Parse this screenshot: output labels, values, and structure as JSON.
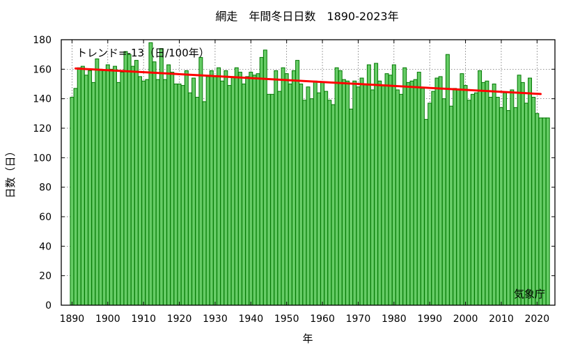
{
  "chart_data": {
    "type": "bar",
    "title": "網走　年間冬日日数　1890-2023年",
    "xlabel": "年",
    "ylabel": "日数（日）",
    "xlim": [
      1887,
      2025
    ],
    "ylim": [
      0,
      180
    ],
    "x_ticks": [
      1890,
      1900,
      1910,
      1920,
      1930,
      1940,
      1950,
      1960,
      1970,
      1980,
      1990,
      2000,
      2010,
      2020
    ],
    "y_ticks": [
      0,
      20,
      40,
      60,
      80,
      100,
      120,
      140,
      160,
      180
    ],
    "grid": true,
    "bar_color": "#66cc66",
    "bar_edge_color": "#007700",
    "trend_color": "#ff0000",
    "trend_annotation": "トレンド=-13（日/100年）",
    "source": "気象庁",
    "start_year": 1890,
    "values": [
      141,
      147,
      161,
      162,
      156,
      159,
      151,
      167,
      160,
      159,
      163,
      160,
      162,
      151,
      158,
      172,
      170,
      162,
      166,
      155,
      152,
      153,
      178,
      165,
      153,
      174,
      153,
      163,
      158,
      150,
      150,
      149,
      159,
      144,
      154,
      141,
      168,
      138,
      155,
      159,
      155,
      161,
      152,
      159,
      149,
      155,
      161,
      158,
      150,
      155,
      158,
      156,
      157,
      168,
      173,
      143,
      143,
      159,
      145,
      161,
      157,
      150,
      159,
      166,
      150,
      139,
      148,
      140,
      152,
      144,
      151,
      145,
      139,
      136,
      161,
      159,
      153,
      152,
      133,
      152,
      148,
      154,
      150,
      163,
      146,
      164,
      152,
      149,
      157,
      156,
      163,
      146,
      143,
      161,
      151,
      152,
      153,
      158,
      147,
      126,
      137,
      145,
      154,
      155,
      140,
      170,
      135,
      147,
      146,
      157,
      149,
      139,
      143,
      144,
      159,
      151,
      152,
      141,
      150,
      141,
      134,
      144,
      132,
      146,
      134,
      156,
      151,
      137,
      154,
      141,
      130,
      127,
      127,
      127
    ],
    "trend": {
      "start_year": 1891,
      "end_year": 2021,
      "start_value": 160.5,
      "end_value": 143.2
    }
  }
}
